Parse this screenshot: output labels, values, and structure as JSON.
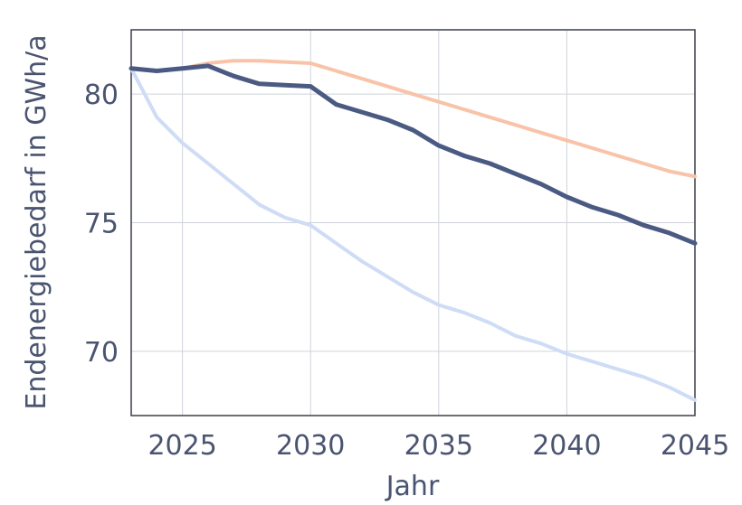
{
  "chart_data": {
    "type": "line",
    "title": "",
    "xlabel": "Jahr",
    "ylabel": "Endenergiebedarf in GWh/a",
    "xlim": [
      2023,
      2045
    ],
    "ylim": [
      67.5,
      82.5
    ],
    "x_ticks": [
      2025,
      2030,
      2035,
      2040,
      2045
    ],
    "y_ticks": [
      70,
      75,
      80
    ],
    "grid": true,
    "series": [
      {
        "color": "#f8c3a8",
        "x": [
          2023,
          2024,
          2025,
          2026,
          2027,
          2028,
          2029,
          2030,
          2031,
          2032,
          2033,
          2034,
          2035,
          2036,
          2037,
          2038,
          2039,
          2040,
          2041,
          2042,
          2043,
          2044,
          2045
        ],
        "values": [
          81.0,
          80.9,
          81.0,
          81.2,
          81.3,
          81.3,
          81.25,
          81.2,
          80.9,
          80.6,
          80.3,
          80.0,
          79.7,
          79.4,
          79.1,
          78.8,
          78.5,
          78.2,
          77.9,
          77.6,
          77.3,
          77.0,
          76.8
        ]
      },
      {
        "color": "#4a5a82",
        "x": [
          2023,
          2024,
          2025,
          2026,
          2027,
          2028,
          2029,
          2030,
          2031,
          2032,
          2033,
          2034,
          2035,
          2036,
          2037,
          2038,
          2039,
          2040,
          2041,
          2042,
          2043,
          2044,
          2045
        ],
        "values": [
          81.0,
          80.9,
          81.0,
          81.1,
          80.7,
          80.4,
          80.35,
          80.3,
          79.6,
          79.3,
          79.0,
          78.6,
          78.0,
          77.6,
          77.3,
          76.9,
          76.5,
          76.0,
          75.6,
          75.3,
          74.9,
          74.6,
          74.2
        ]
      },
      {
        "color": "#cfdcf6",
        "x": [
          2023,
          2024,
          2025,
          2026,
          2027,
          2028,
          2029,
          2030,
          2031,
          2032,
          2033,
          2034,
          2035,
          2036,
          2037,
          2038,
          2039,
          2040,
          2041,
          2042,
          2043,
          2044,
          2045
        ],
        "values": [
          81.0,
          79.1,
          78.1,
          77.3,
          76.5,
          75.7,
          75.2,
          74.9,
          74.2,
          73.5,
          72.9,
          72.3,
          71.8,
          71.5,
          71.1,
          70.6,
          70.3,
          69.9,
          69.6,
          69.3,
          69.0,
          68.6,
          68.1
        ]
      }
    ]
  }
}
